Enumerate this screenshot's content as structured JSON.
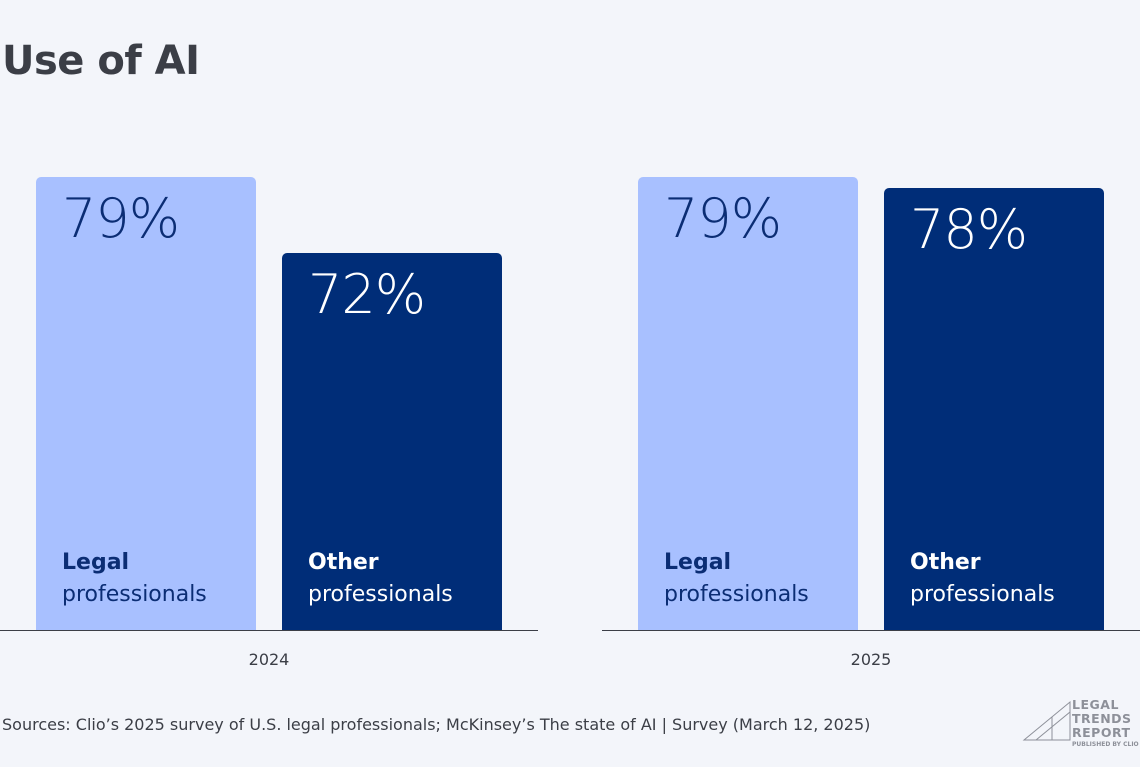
{
  "title": "Use of AI",
  "chart_data": {
    "type": "bar",
    "title": "Use of AI",
    "categories": [
      "2024",
      "2025"
    ],
    "series": [
      {
        "name": "Legal professionals",
        "name_bold": "Legal",
        "name_rest": "professionals",
        "values": [
          79,
          79
        ],
        "color": "#a8c0ff",
        "text_color": "#0b2d74"
      },
      {
        "name": "Other professionals",
        "name_bold": "Other",
        "name_rest": "professionals",
        "values": [
          72,
          78
        ],
        "color": "#002d78",
        "text_color": "#ffffff"
      }
    ],
    "value_labels": [
      [
        "79%",
        "79%"
      ],
      [
        "72%",
        "78%"
      ]
    ],
    "ylim": [
      37,
      80
    ],
    "grid": false,
    "xlabel": "",
    "ylabel": ""
  },
  "source": "Sources: Clio’s 2025 survey of U.S. legal professionals; McKinsey’s The state of AI | Survey (March 12, 2025)",
  "logo": {
    "line1": "LEGAL",
    "line2": "TRENDS",
    "line3": "REPORT",
    "published": "PUBLISHED BY CLIO"
  }
}
